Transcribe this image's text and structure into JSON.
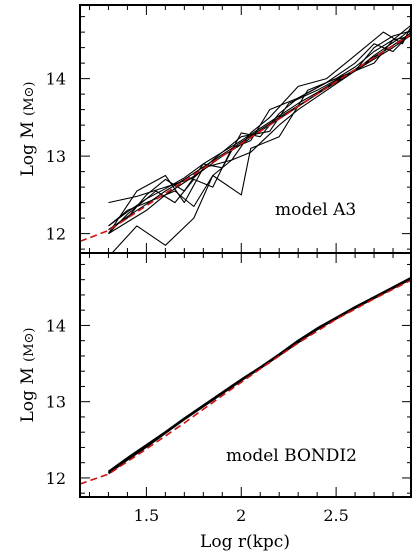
{
  "chart_data": [
    {
      "panel": "top",
      "type": "line",
      "annotation": "model A3",
      "ylabel": "Log M (M⊙)",
      "ylabel_main": "Log M",
      "ylabel_unit": "(M⊙)",
      "xlabel": "",
      "xlim": [
        1.15,
        2.9
      ],
      "ylim": [
        11.75,
        14.95
      ],
      "x_ticks": [
        1.5,
        2,
        2.5
      ],
      "y_ticks": [
        12,
        13,
        14
      ],
      "y_tick_labels": [
        "12",
        "13",
        "14"
      ],
      "colors": {
        "reference": "#cc1111",
        "simulation": "#000000"
      },
      "series": [
        {
          "x": [
            1.3,
            1.4,
            1.5,
            1.6,
            1.7,
            1.8,
            1.9,
            2.0,
            2.1,
            2.2,
            2.3,
            2.4,
            2.5,
            2.6,
            2.7,
            2.8,
            2.9
          ],
          "y": [
            12.05,
            12.22,
            12.38,
            12.55,
            12.7,
            12.86,
            13.02,
            13.18,
            13.34,
            13.5,
            13.65,
            13.8,
            13.95,
            14.1,
            14.25,
            14.4,
            14.57
          ]
        },
        {
          "x": [
            1.3,
            1.4,
            1.5,
            1.6,
            1.7,
            1.8,
            1.9,
            2.0,
            2.1,
            2.2,
            2.3,
            2.4,
            2.5,
            2.6,
            2.7,
            2.8,
            2.9
          ],
          "y": [
            12.0,
            12.15,
            12.3,
            12.5,
            12.66,
            12.82,
            13.0,
            13.15,
            13.32,
            13.48,
            13.64,
            13.8,
            13.96,
            14.1,
            14.27,
            14.43,
            14.58
          ]
        },
        {
          "x": [
            1.3,
            1.4,
            1.5,
            1.6,
            1.7,
            1.8,
            1.9,
            2.0,
            2.1,
            2.2,
            2.3,
            2.4,
            2.5,
            2.6,
            2.7,
            2.8,
            2.9
          ],
          "y": [
            12.1,
            12.28,
            12.45,
            12.58,
            12.72,
            12.9,
            13.05,
            13.2,
            13.36,
            13.52,
            13.68,
            13.82,
            13.97,
            14.12,
            14.28,
            14.43,
            14.6
          ]
        },
        {
          "x": [
            1.3,
            1.45,
            1.6,
            1.75,
            1.85,
            2.0,
            2.15,
            2.25,
            2.4,
            2.55,
            2.7,
            2.8,
            2.9
          ],
          "y": [
            12.4,
            12.48,
            12.6,
            12.72,
            12.95,
            13.25,
            13.32,
            13.68,
            13.85,
            14.05,
            14.2,
            14.5,
            14.55
          ]
        },
        {
          "x": [
            1.3,
            1.4,
            1.55,
            1.65,
            1.75,
            1.85,
            1.95,
            2.05,
            2.15,
            2.3,
            2.45,
            2.6,
            2.7,
            2.8,
            2.9
          ],
          "y": [
            12.0,
            12.25,
            12.55,
            12.4,
            12.7,
            12.6,
            13.1,
            13.2,
            13.6,
            13.75,
            13.95,
            14.2,
            14.45,
            14.35,
            14.6
          ]
        },
        {
          "x": [
            1.3,
            1.45,
            1.6,
            1.7,
            1.8,
            1.95,
            2.05,
            2.15,
            2.3,
            2.45,
            2.6,
            2.75,
            2.85,
            2.9
          ],
          "y": [
            12.0,
            12.55,
            12.75,
            12.4,
            12.85,
            12.95,
            13.3,
            13.5,
            13.9,
            14.0,
            14.3,
            14.6,
            14.45,
            14.7
          ]
        },
        {
          "x": [
            1.3,
            1.4,
            1.5,
            1.6,
            1.7,
            1.8,
            1.9,
            2.0,
            2.1,
            2.2,
            2.3,
            2.45,
            2.6,
            2.7,
            2.8,
            2.9
          ],
          "y": [
            12.05,
            12.2,
            12.5,
            12.7,
            12.55,
            12.9,
            12.85,
            13.3,
            13.25,
            13.55,
            13.75,
            13.95,
            14.1,
            14.4,
            14.55,
            14.62
          ]
        },
        {
          "x": [
            1.3,
            1.45,
            1.6,
            1.75,
            1.85,
            2.0,
            2.05,
            2.2,
            2.35,
            2.5,
            2.6,
            2.7,
            2.8,
            2.9
          ],
          "y": [
            11.7,
            12.1,
            11.85,
            12.2,
            12.75,
            12.5,
            13.1,
            13.25,
            13.85,
            14.0,
            14.15,
            14.35,
            14.5,
            14.7
          ]
        },
        {
          "x": [
            1.3,
            1.4,
            1.5,
            1.65,
            1.75,
            1.85,
            1.95,
            2.05,
            2.2,
            2.3,
            2.45,
            2.6,
            2.7,
            2.85,
            2.9
          ],
          "y": [
            12.1,
            12.3,
            12.4,
            12.55,
            12.35,
            12.75,
            12.95,
            13.05,
            13.4,
            13.6,
            13.85,
            14.1,
            14.3,
            14.55,
            14.65
          ]
        }
      ],
      "reference_line": {
        "x": [
          1.15,
          1.3,
          1.5,
          1.7,
          1.9,
          2.1,
          2.3,
          2.5,
          2.7,
          2.9
        ],
        "y": [
          11.9,
          12.04,
          12.36,
          12.68,
          13.0,
          13.32,
          13.64,
          13.96,
          14.27,
          14.58
        ]
      }
    },
    {
      "panel": "bottom",
      "type": "line",
      "annotation": "model BONDI2",
      "ylabel": "Log M (M⊙)",
      "ylabel_main": "Log M",
      "ylabel_unit": "(M⊙)",
      "xlabel": "Log r(kpc)",
      "xlim": [
        1.15,
        2.9
      ],
      "ylim": [
        11.75,
        14.95
      ],
      "x_ticks": [
        1.5,
        2,
        2.5
      ],
      "x_tick_labels": [
        "1.5",
        "2",
        "2.5"
      ],
      "y_ticks": [
        12,
        13,
        14
      ],
      "y_tick_labels": [
        "12",
        "13",
        "14"
      ],
      "colors": {
        "reference": "#cc1111",
        "simulation": "#000000"
      },
      "series": [
        {
          "x": [
            1.3,
            1.4,
            1.5,
            1.6,
            1.7,
            1.8,
            1.9,
            2.0,
            2.1,
            2.2,
            2.3,
            2.4,
            2.5,
            2.6,
            2.7,
            2.8,
            2.9
          ],
          "y": [
            12.08,
            12.26,
            12.43,
            12.6,
            12.78,
            12.95,
            13.12,
            13.29,
            13.45,
            13.62,
            13.8,
            13.96,
            14.1,
            14.24,
            14.37,
            14.5,
            14.63
          ]
        },
        {
          "x": [
            1.3,
            1.4,
            1.5,
            1.6,
            1.7,
            1.8,
            1.9,
            2.0,
            2.1,
            2.2,
            2.3,
            2.4,
            2.5,
            2.6,
            2.7,
            2.8,
            2.9
          ],
          "y": [
            12.06,
            12.24,
            12.41,
            12.59,
            12.77,
            12.94,
            13.11,
            13.28,
            13.44,
            13.61,
            13.78,
            13.95,
            14.09,
            14.23,
            14.36,
            14.49,
            14.62
          ]
        }
      ],
      "reference_line": {
        "x": [
          1.15,
          1.3,
          1.5,
          1.7,
          1.9,
          2.1,
          2.3,
          2.5,
          2.7,
          2.9
        ],
        "y": [
          11.92,
          12.05,
          12.38,
          12.72,
          13.08,
          13.43,
          13.77,
          14.08,
          14.35,
          14.6
        ]
      }
    }
  ]
}
